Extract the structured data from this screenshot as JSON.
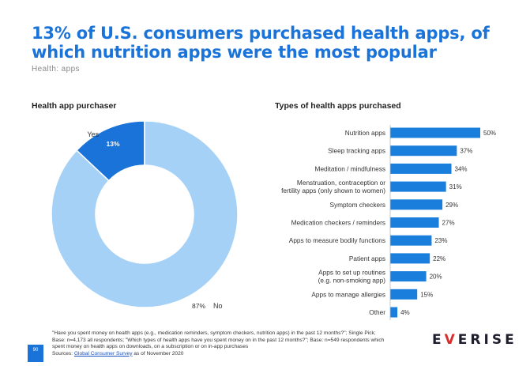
{
  "header": {
    "title": "13% of U.S. consumers purchased health apps, of  which nutrition apps were the most popular",
    "subtitle": "Health: apps"
  },
  "colors": {
    "primary": "#1a73d9",
    "light": "#a6d1f7",
    "bar": "#1a7fdc",
    "logo_accent": "#d62d2d"
  },
  "chart_data": [
    {
      "type": "pie",
      "title": "Health app purchaser",
      "labels": [
        "Yes",
        "No"
      ],
      "values": [
        13,
        87
      ],
      "value_labels": [
        "13%",
        "87%"
      ],
      "colors": [
        "#1a73d9",
        "#a6d1f7"
      ]
    },
    {
      "type": "bar",
      "orientation": "horizontal",
      "title": "Types of health apps purchased",
      "categories": [
        "Nutrition apps",
        "Sleep tracking apps",
        "Meditation / mindfulness",
        "Menstruation, contraception or fertility apps (only shown to women)",
        "Symptom checkers",
        "Medication checkers / reminders",
        "Apps to measure bodily functions",
        "Patient apps",
        "Apps to set up routines (e.g. non-smoking app)",
        "Apps to manage allergies",
        "Other"
      ],
      "category_lines": [
        [
          "Nutrition apps"
        ],
        [
          "Sleep tracking apps"
        ],
        [
          "Meditation / mindfulness"
        ],
        [
          "Menstruation, contraception or",
          "fertility apps (only shown to women)"
        ],
        [
          "Symptom checkers"
        ],
        [
          "Medication checkers / reminders"
        ],
        [
          "Apps to measure bodily functions"
        ],
        [
          "Patient apps"
        ],
        [
          "Apps to set up routines",
          "(e.g. non-smoking app)"
        ],
        [
          "Apps to manage allergies"
        ],
        [
          "Other"
        ]
      ],
      "values": [
        50,
        37,
        34,
        31,
        29,
        27,
        23,
        22,
        20,
        15,
        4
      ],
      "value_labels": [
        "50%",
        "37%",
        "34%",
        "31%",
        "29%",
        "27%",
        "23%",
        "22%",
        "20%",
        "15%",
        "4%"
      ],
      "xlim": [
        0,
        50
      ]
    }
  ],
  "footnote": {
    "line1": "\"Have you spent money on health apps (e.g., medication reminders, symptom checkers, nutrition apps) in the past 12 months?\"; Single Pick;",
    "line2": "Base: n=4,173 all respondents; \"Which types of health apps have you spent money on in the past 12 months?\"; Base: n=549 respondents which",
    "line3": "spent money on health apps on downloads, on a subscription or on in-app purchases",
    "sources_prefix": "Sources: ",
    "sources_link": "Global Consumer Survey",
    "sources_suffix": " as of November 2020"
  },
  "page_number": "90",
  "logo": {
    "part1": "E",
    "accent": "V",
    "part2": "ERISE"
  }
}
